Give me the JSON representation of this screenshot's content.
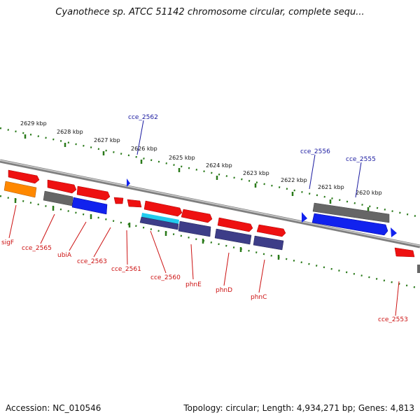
{
  "title": "Cyanothece sp. ATCC 51142 chromosome circular, complete sequ...",
  "footer": {
    "accession": "Accession: NC_010546",
    "topology": "Topology: circular; Length: 4,934,271 bp; Genes: 4,813"
  },
  "colors": {
    "backbone": "#999999",
    "tick": "#2a7a1a",
    "red_gene": "#ee1111",
    "blue_gene": "#1122ee",
    "gray_gene": "#666666",
    "orange_gene": "#ff8800",
    "navy_gene": "#3d3d88",
    "cyan_gene": "#22ccee",
    "upper_label": "#1a1aa0",
    "lower_label": "#cc1111"
  },
  "kbp_labels": [
    "2629 kbp",
    "2628 kbp",
    "2627 kbp",
    "2626 kbp",
    "2625 kbp",
    "2624 kbp",
    "2623 kbp",
    "2622 kbp",
    "2621 kbp",
    "2620 kbp"
  ],
  "upper_gene_labels": [
    "cce_2562",
    "cce_2556",
    "cce_2555"
  ],
  "lower_gene_labels": [
    "sigF",
    "cce_2565",
    "ubiA",
    "cce_2563",
    "cce_2561",
    "cce_2560",
    "phnE",
    "phnD",
    "phnC",
    "cce_2553"
  ]
}
